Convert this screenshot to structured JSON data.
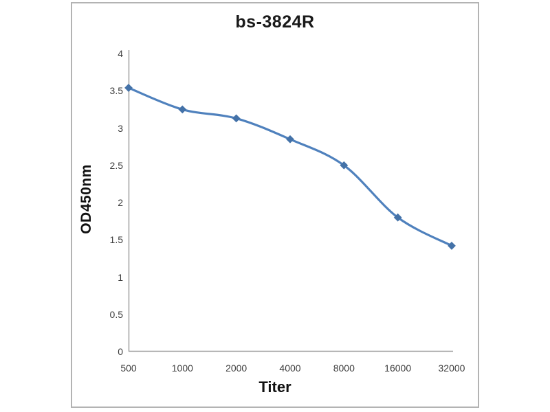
{
  "window": {
    "background_color": "#ffffff",
    "card_border_color": "#b3b3b3"
  },
  "chart_data": {
    "type": "line",
    "title": "bs-3824R",
    "xlabel": "Titer",
    "ylabel": "OD450nm",
    "categories": [
      "500",
      "1000",
      "2000",
      "4000",
      "8000",
      "16000",
      "32000"
    ],
    "series": [
      {
        "name": "OD450nm",
        "values": [
          3.54,
          3.25,
          3.13,
          2.85,
          2.5,
          1.8,
          1.42
        ],
        "color": "#4f81bd",
        "marker": "diamond",
        "marker_color": "#4472a8",
        "smooth": true
      }
    ],
    "y_ticks": [
      "0",
      "0.5",
      "1",
      "1.5",
      "2",
      "2.5",
      "3",
      "3.5",
      "4"
    ],
    "ylim": [
      0,
      4
    ],
    "grid": false,
    "legend_position": "none",
    "axis_color": "#999999",
    "tick_text_color": "#3d3d3d"
  }
}
